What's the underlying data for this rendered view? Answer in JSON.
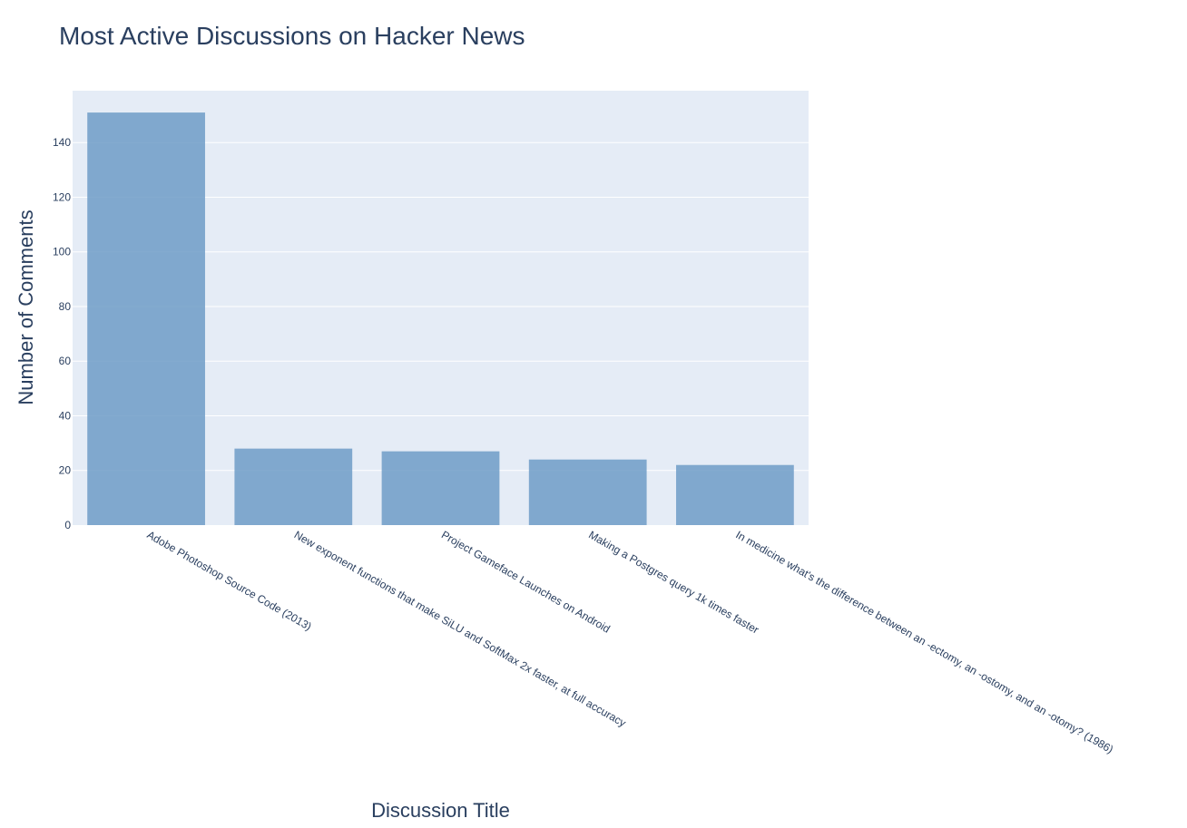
{
  "chart_data": {
    "type": "bar",
    "title": "Most Active Discussions on Hacker News",
    "xlabel": "Discussion Title",
    "ylabel": "Number of Comments",
    "categories": [
      "Adobe Photoshop Source Code (2013)",
      "New exponent functions that make SiLU and SoftMax 2x faster, at full accuracy",
      "Project Gameface Launches on Android",
      "Making a Postgres query 1k times faster",
      "In medicine what's the difference between an -ectomy, an -ostomy, and an -otomy? (1986)"
    ],
    "values": [
      151,
      28,
      27,
      24,
      22
    ],
    "ylim": [
      0,
      159
    ],
    "yticks": [
      0,
      20,
      40,
      60,
      80,
      100,
      120,
      140
    ],
    "grid": true,
    "legend": "none",
    "colors": {
      "bar": "#6f9cc7",
      "plot_background": "#e5ecf6",
      "grid": "#ffffff",
      "text": "#2a3f5f"
    }
  }
}
